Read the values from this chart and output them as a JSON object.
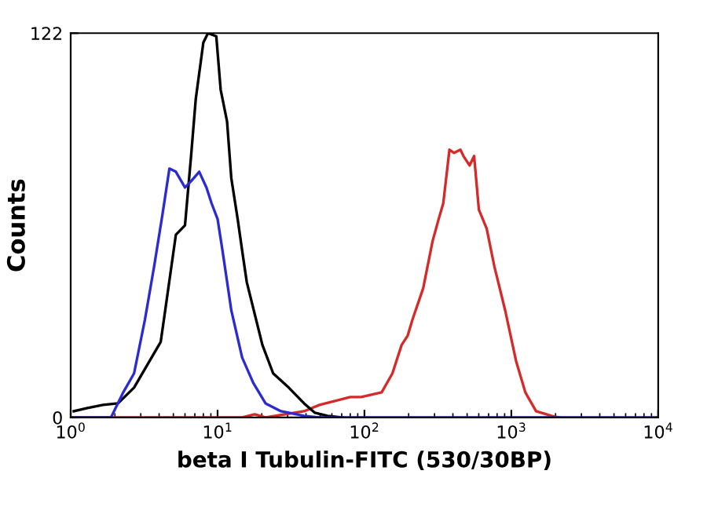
{
  "chart_data": {
    "type": "line",
    "xlabel": "beta I Tubulin-FITC (530/30BP)",
    "ylabel": "Counts",
    "log": "x",
    "xlim": [
      1,
      10000
    ],
    "ylim": [
      0,
      122
    ],
    "xticks": [
      {
        "value": 1,
        "label": "10$^{0}$"
      },
      {
        "value": 10,
        "label": "10$^{1}$"
      },
      {
        "value": 100,
        "label": "10$^{2}$"
      },
      {
        "value": 1000,
        "label": "10$^{3}$"
      },
      {
        "value": 10000,
        "label": "10$^{4}$"
      }
    ],
    "yticks": [
      0,
      122
    ],
    "grid": false,
    "legend": false,
    "marker": "none",
    "line_style": "solid",
    "series": [
      {
        "color": "#d42a2a",
        "x": [
          1,
          14.7,
          17.9,
          21.2,
          38.8,
          49.5,
          80,
          95,
          131,
          155,
          179,
          197,
          212,
          251,
          291,
          320,
          344,
          379,
          408,
          450,
          472,
          520,
          558,
          601,
          679,
          766,
          908,
          1076,
          1245,
          1473,
          1878,
          2120
        ],
        "values": [
          0,
          0,
          1,
          0,
          2,
          4,
          6.5,
          6.5,
          8,
          14,
          23,
          26,
          31,
          41,
          56,
          63,
          68,
          85,
          84,
          85,
          83,
          80,
          83,
          66,
          60,
          48,
          34,
          18,
          8,
          2,
          0.5,
          0
        ]
      },
      {
        "color": "#000000",
        "x": [
          1.05,
          1.3,
          1.66,
          2.1,
          2.7,
          4.1,
          4.4,
          5.2,
          6.0,
          6.6,
          7.1,
          8.0,
          8.6,
          9.8,
          10.5,
          11.6,
          12.4,
          13.7,
          14.7,
          15.8,
          20.2,
          23.9,
          30.5,
          38.8,
          46,
          56,
          71
        ],
        "values": [
          2,
          3,
          4,
          4.5,
          9.5,
          24,
          34,
          58,
          61,
          83,
          101,
          119,
          122,
          121,
          104,
          94,
          76,
          63,
          53,
          43,
          23,
          14,
          9.5,
          4.5,
          1.5,
          0.5,
          0
        ]
      },
      {
        "color": "#2b2bd0",
        "x": [
          1,
          1.88,
          2.28,
          2.7,
          3.2,
          3.7,
          4.2,
          4.7,
          5.2,
          6.0,
          6.6,
          7.5,
          8.4,
          9.1,
          10,
          10.8,
          12.4,
          14.7,
          17.5,
          21.2,
          27,
          38.8,
          49.5,
          10000
        ],
        "values": [
          0,
          0,
          8,
          14,
          31,
          48,
          64,
          79,
          78,
          73,
          75,
          78,
          73,
          68,
          63,
          53,
          34,
          19,
          11,
          4.5,
          2,
          0.5,
          0,
          0
        ]
      }
    ]
  }
}
